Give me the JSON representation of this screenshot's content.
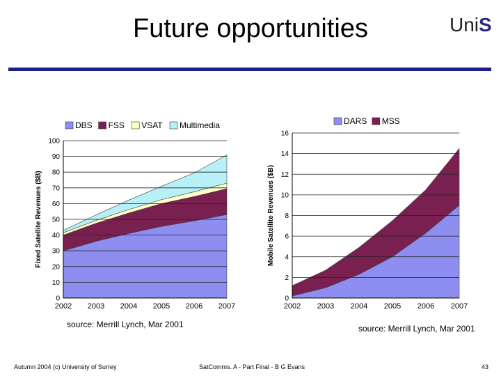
{
  "slide": {
    "title": "Future opportunities",
    "logo_prefix": "Uni",
    "logo_suffix": "S",
    "footer_left": "Autumn 2004 (c) University of Surrey",
    "footer_mid": "SatComms. A - Part Final - B G Evans",
    "page_number": "43"
  },
  "colors": {
    "rule": "#1c1c8e",
    "dbs": "#8e8ef0",
    "fss": "#7a2050",
    "vsat": "#ffffc8",
    "multimedia": "#b8f0f8",
    "dars": "#8e8ef0",
    "mss": "#7a2050"
  },
  "chart_data": [
    {
      "type": "area",
      "stacked": true,
      "x": [
        "2002",
        "2003",
        "2004",
        "2005",
        "2006",
        "2007"
      ],
      "series": [
        {
          "name": "DBS",
          "values": [
            30,
            36,
            41,
            45.5,
            49,
            53
          ]
        },
        {
          "name": "FSS",
          "values": [
            10,
            11.5,
            13,
            14.5,
            15.5,
            16.5
          ]
        },
        {
          "name": "VSAT",
          "values": [
            1.5,
            1.8,
            2.2,
            2.5,
            3,
            3.5
          ]
        },
        {
          "name": "Multimedia",
          "values": [
            1.5,
            3.5,
            6,
            8.5,
            12,
            18
          ]
        }
      ],
      "ylabel": "Fixed Satellite Revenues ($B)",
      "xlabel": "",
      "yticks": [
        "0",
        "10",
        "20",
        "30",
        "40",
        "50",
        "60",
        "70",
        "80",
        "90",
        "100"
      ],
      "ylim": [
        0,
        100
      ],
      "legend": "top",
      "grid": true,
      "source": "source: Merrill Lynch, Mar 2001"
    },
    {
      "type": "area",
      "stacked": true,
      "x": [
        "2002",
        "2003",
        "2004",
        "2005",
        "2006",
        "2007"
      ],
      "series": [
        {
          "name": "DARS",
          "values": [
            0.2,
            1,
            2.3,
            4,
            6.3,
            9
          ]
        },
        {
          "name": "MSS",
          "values": [
            1,
            1.7,
            2.6,
            3.5,
            4.2,
            5.5
          ]
        }
      ],
      "ylabel": "Mobile Satellite Revenues ($B)",
      "xlabel": "",
      "yticks": [
        "0",
        "2",
        "4",
        "6",
        "8",
        "10",
        "12",
        "14",
        "16"
      ],
      "ylim": [
        0,
        16
      ],
      "legend": "top",
      "grid": true,
      "source": "source: Merrill Lynch, Mar 2001"
    }
  ]
}
